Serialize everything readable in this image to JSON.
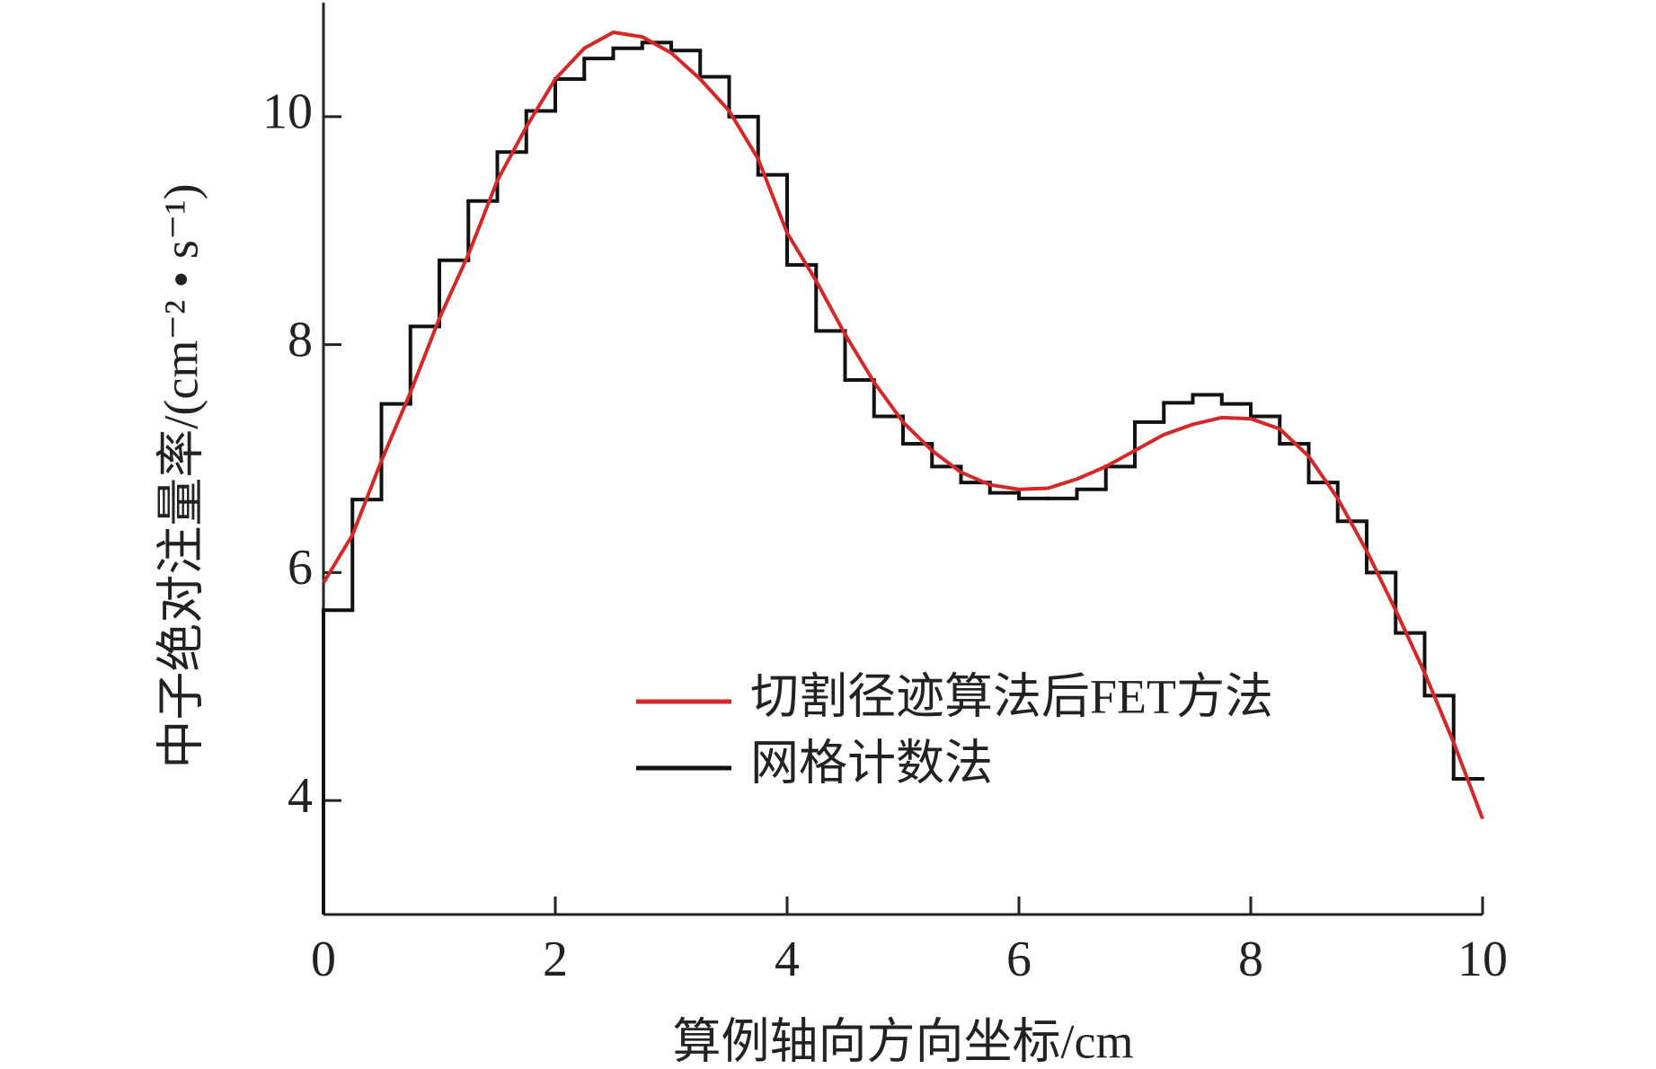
{
  "chart_data": {
    "type": "line",
    "xlabel": "算例轴向方向坐标/cm",
    "ylabel": "中子绝对注量率/(cm⁻² • s⁻¹)",
    "xlim": [
      0,
      10
    ],
    "xticks": [
      0,
      2,
      4,
      6,
      8,
      10
    ],
    "ylim": [
      3,
      11
    ],
    "yticks": [
      4,
      6,
      8,
      10
    ],
    "legend": "lower right",
    "series": [
      {
        "name": "切割径迹算法后FET方法",
        "color": "#d62728",
        "x": [
          0,
          0.25,
          0.5,
          0.75,
          1,
          1.25,
          1.5,
          1.75,
          2,
          2.25,
          2.5,
          2.75,
          3,
          3.25,
          3.5,
          3.75,
          4,
          4.25,
          4.5,
          4.75,
          5,
          5.25,
          5.5,
          5.75,
          6,
          6.25,
          6.5,
          6.75,
          7,
          7.25,
          7.5,
          7.75,
          8,
          8.25,
          8.5,
          8.75,
          9,
          9.25,
          9.5,
          9.75,
          10
        ],
        "values": [
          5.91,
          6.33,
          6.98,
          7.58,
          8.23,
          8.79,
          9.44,
          9.91,
          10.33,
          10.6,
          10.74,
          10.7,
          10.56,
          10.33,
          10.05,
          9.63,
          8.98,
          8.56,
          8.09,
          7.67,
          7.32,
          7.07,
          6.88,
          6.77,
          6.73,
          6.74,
          6.82,
          6.93,
          7.07,
          7.21,
          7.3,
          7.36,
          7.35,
          7.26,
          7.02,
          6.65,
          6.19,
          5.67,
          5.12,
          4.51,
          3.84
        ]
      },
      {
        "name": "网格计数法",
        "color": "#111111",
        "bins": [
          0,
          0.25,
          0.5,
          0.75,
          1,
          1.25,
          1.5,
          1.75,
          2,
          2.25,
          2.5,
          2.75,
          3,
          3.25,
          3.5,
          3.75,
          4,
          4.25,
          4.5,
          4.75,
          5,
          5.25,
          5.5,
          5.75,
          6,
          6.25,
          6.5,
          6.75,
          7,
          7.25,
          7.5,
          7.75,
          8,
          8.25,
          8.5,
          8.75,
          9,
          9.25,
          9.5,
          9.75,
          10
        ],
        "values": [
          5.67,
          6.64,
          7.48,
          8.16,
          8.74,
          9.26,
          9.69,
          10.05,
          10.33,
          10.51,
          10.6,
          10.65,
          10.58,
          10.35,
          10.0,
          9.49,
          8.7,
          8.12,
          7.69,
          7.37,
          7.13,
          6.93,
          6.79,
          6.7,
          6.65,
          6.65,
          6.73,
          6.93,
          7.32,
          7.49,
          7.56,
          7.48,
          7.37,
          7.13,
          6.79,
          6.45,
          6.0,
          5.47,
          4.92,
          4.19
        ]
      }
    ]
  }
}
